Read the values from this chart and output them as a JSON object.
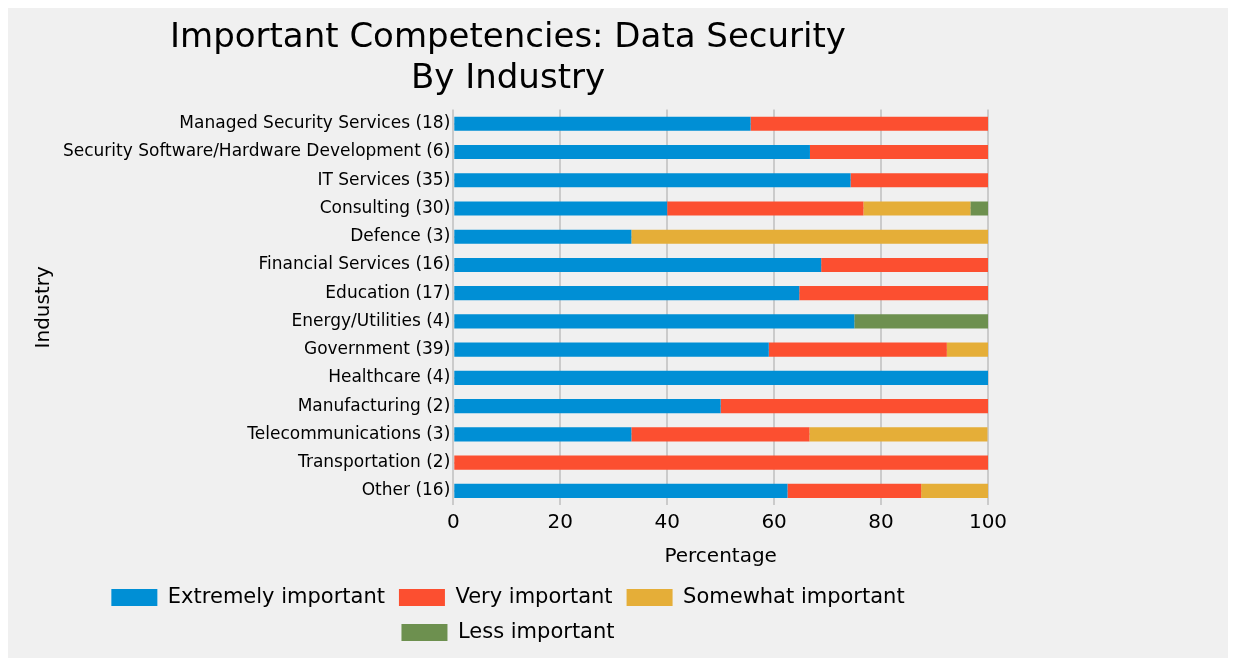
{
  "chart_data": {
    "type": "bar",
    "orientation": "horizontal",
    "stacked": true,
    "title": "Important Competencies: Data Security\nBy Industry",
    "xlabel": "Percentage",
    "ylabel": "Industry",
    "categories": [
      "Managed Security Services (18)",
      "Security Software/Hardware Development (6)",
      "IT Services (35)",
      "Consulting (30)",
      "Defence (3)",
      "Financial Services (16)",
      "Education (17)",
      "Energy/Utilities (4)",
      "Government (39)",
      "Healthcare (4)",
      "Manufacturing (2)",
      "Telecommunications (3)",
      "Transportation (2)",
      "Other (16)"
    ],
    "series": [
      {
        "name": "Extremely important",
        "color": "#008fd5",
        "values": [
          55.6,
          66.7,
          74.3,
          40,
          33.3,
          68.8,
          64.7,
          75,
          59,
          100,
          50,
          33.3,
          0,
          62.5
        ]
      },
      {
        "name": "Very important",
        "color": "#fc4f30",
        "values": [
          44.4,
          33.3,
          25.7,
          36.7,
          0,
          31.2,
          35.3,
          0,
          33.3,
          0,
          50,
          33.3,
          100,
          25
        ]
      },
      {
        "name": "Somewhat important",
        "color": "#e5ae38",
        "values": [
          0,
          0,
          0,
          20,
          66.7,
          0,
          0,
          0,
          7.7,
          0,
          0,
          33.3,
          0,
          12.5
        ]
      },
      {
        "name": "Less important",
        "color": "#6d904f",
        "values": [
          0,
          0,
          0,
          3.3,
          0,
          0,
          0,
          25,
          0,
          0,
          0,
          0,
          0,
          0
        ]
      }
    ],
    "xlim": [
      0,
      100
    ],
    "xticks": [
      0,
      20,
      40,
      60,
      80,
      100
    ],
    "grid": true,
    "legend": "bottom"
  }
}
